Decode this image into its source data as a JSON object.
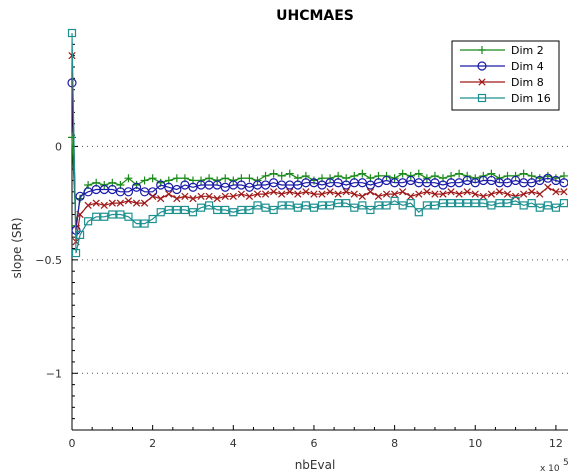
{
  "chart_data": {
    "type": "line",
    "title": "UHCMAES",
    "xlabel": "nbEval",
    "ylabel": "slope (SR)",
    "x_exponent_label": "x 10",
    "x_exponent_power": "5",
    "xlim": [
      0,
      12.3
    ],
    "ylim": [
      -1.25,
      0.5
    ],
    "x_ticks": [
      0,
      2,
      4,
      6,
      8,
      10,
      12
    ],
    "x_tick_labels": [
      "0",
      "2",
      "4",
      "6",
      "8",
      "10",
      "12"
    ],
    "y_ticks": [
      0,
      -0.5,
      -1
    ],
    "y_tick_labels": [
      "0",
      "−0.5",
      "−1"
    ],
    "grid": "dotted horizontal",
    "legend_position": "top-right",
    "series": [
      {
        "name": "Dim 2",
        "color": "#1a8a1a",
        "marker": "plus",
        "x": [
          0,
          0.1,
          0.2,
          0.4,
          0.6,
          0.8,
          1.0,
          1.2,
          1.4,
          1.6,
          1.8,
          2.0,
          2.2,
          2.4,
          2.6,
          2.8,
          3.0,
          3.2,
          3.4,
          3.6,
          3.8,
          4.0,
          4.2,
          4.4,
          4.6,
          4.8,
          5.0,
          5.2,
          5.4,
          5.6,
          5.8,
          6.0,
          6.2,
          6.4,
          6.6,
          6.8,
          7.0,
          7.2,
          7.4,
          7.6,
          7.8,
          8.0,
          8.2,
          8.4,
          8.6,
          8.8,
          9.0,
          9.2,
          9.4,
          9.6,
          9.8,
          10.0,
          10.2,
          10.4,
          10.6,
          10.8,
          11.0,
          11.2,
          11.4,
          11.6,
          11.8,
          12.0,
          12.2
        ],
        "y": [
          0.04,
          -0.35,
          -0.23,
          -0.17,
          -0.16,
          -0.17,
          -0.16,
          -0.17,
          -0.14,
          -0.17,
          -0.15,
          -0.14,
          -0.16,
          -0.15,
          -0.14,
          -0.14,
          -0.15,
          -0.15,
          -0.14,
          -0.15,
          -0.14,
          -0.15,
          -0.14,
          -0.14,
          -0.15,
          -0.13,
          -0.12,
          -0.13,
          -0.12,
          -0.14,
          -0.13,
          -0.15,
          -0.14,
          -0.14,
          -0.13,
          -0.14,
          -0.13,
          -0.12,
          -0.14,
          -0.13,
          -0.13,
          -0.14,
          -0.12,
          -0.13,
          -0.12,
          -0.14,
          -0.13,
          -0.14,
          -0.13,
          -0.12,
          -0.13,
          -0.14,
          -0.13,
          -0.12,
          -0.14,
          -0.13,
          -0.13,
          -0.12,
          -0.13,
          -0.14,
          -0.13,
          -0.14,
          -0.13
        ]
      },
      {
        "name": "Dim 4",
        "color": "#1a1aa8",
        "marker": "circle",
        "x": [
          0,
          0.1,
          0.2,
          0.4,
          0.6,
          0.8,
          1.0,
          1.2,
          1.4,
          1.6,
          1.8,
          2.0,
          2.2,
          2.4,
          2.6,
          2.8,
          3.0,
          3.2,
          3.4,
          3.6,
          3.8,
          4.0,
          4.2,
          4.4,
          4.6,
          4.8,
          5.0,
          5.2,
          5.4,
          5.6,
          5.8,
          6.0,
          6.2,
          6.4,
          6.6,
          6.8,
          7.0,
          7.2,
          7.4,
          7.6,
          7.8,
          8.0,
          8.2,
          8.4,
          8.6,
          8.8,
          9.0,
          9.2,
          9.4,
          9.6,
          9.8,
          10.0,
          10.2,
          10.4,
          10.6,
          10.8,
          11.0,
          11.2,
          11.4,
          11.6,
          11.8,
          12.0,
          12.2
        ],
        "y": [
          0.28,
          -0.37,
          -0.22,
          -0.2,
          -0.19,
          -0.19,
          -0.19,
          -0.2,
          -0.2,
          -0.18,
          -0.2,
          -0.2,
          -0.17,
          -0.18,
          -0.19,
          -0.17,
          -0.18,
          -0.17,
          -0.17,
          -0.17,
          -0.18,
          -0.17,
          -0.17,
          -0.18,
          -0.17,
          -0.17,
          -0.16,
          -0.17,
          -0.17,
          -0.17,
          -0.16,
          -0.16,
          -0.17,
          -0.16,
          -0.16,
          -0.17,
          -0.16,
          -0.16,
          -0.17,
          -0.16,
          -0.15,
          -0.16,
          -0.16,
          -0.15,
          -0.16,
          -0.16,
          -0.16,
          -0.17,
          -0.16,
          -0.16,
          -0.15,
          -0.16,
          -0.15,
          -0.15,
          -0.16,
          -0.16,
          -0.15,
          -0.16,
          -0.16,
          -0.15,
          -0.14,
          -0.15,
          -0.16
        ]
      },
      {
        "name": "Dim 8",
        "color": "#a01818",
        "marker": "x",
        "x": [
          0,
          0.1,
          0.2,
          0.4,
          0.6,
          0.8,
          1.0,
          1.2,
          1.4,
          1.6,
          1.8,
          2.0,
          2.2,
          2.4,
          2.6,
          2.8,
          3.0,
          3.2,
          3.4,
          3.6,
          3.8,
          4.0,
          4.2,
          4.4,
          4.6,
          4.8,
          5.0,
          5.2,
          5.4,
          5.6,
          5.8,
          6.0,
          6.2,
          6.4,
          6.6,
          6.8,
          7.0,
          7.2,
          7.4,
          7.6,
          7.8,
          8.0,
          8.2,
          8.4,
          8.6,
          8.8,
          9.0,
          9.2,
          9.4,
          9.6,
          9.8,
          10.0,
          10.2,
          10.4,
          10.6,
          10.8,
          11.0,
          11.2,
          11.4,
          11.6,
          11.8,
          12.0,
          12.2
        ],
        "y": [
          0.4,
          -0.42,
          -0.3,
          -0.26,
          -0.25,
          -0.26,
          -0.25,
          -0.25,
          -0.24,
          -0.25,
          -0.25,
          -0.22,
          -0.23,
          -0.21,
          -0.23,
          -0.22,
          -0.23,
          -0.22,
          -0.22,
          -0.23,
          -0.22,
          -0.22,
          -0.21,
          -0.22,
          -0.21,
          -0.21,
          -0.2,
          -0.21,
          -0.2,
          -0.21,
          -0.2,
          -0.21,
          -0.21,
          -0.2,
          -0.21,
          -0.2,
          -0.21,
          -0.22,
          -0.2,
          -0.22,
          -0.21,
          -0.21,
          -0.2,
          -0.22,
          -0.21,
          -0.2,
          -0.21,
          -0.21,
          -0.2,
          -0.21,
          -0.2,
          -0.21,
          -0.22,
          -0.21,
          -0.2,
          -0.21,
          -0.22,
          -0.21,
          -0.2,
          -0.21,
          -0.18,
          -0.2,
          -0.2
        ]
      },
      {
        "name": "Dim 16",
        "color": "#1e9090",
        "marker": "square",
        "x": [
          0,
          0.1,
          0.2,
          0.4,
          0.6,
          0.8,
          1.0,
          1.2,
          1.4,
          1.6,
          1.8,
          2.0,
          2.2,
          2.4,
          2.6,
          2.8,
          3.0,
          3.2,
          3.4,
          3.6,
          3.8,
          4.0,
          4.2,
          4.4,
          4.6,
          4.8,
          5.0,
          5.2,
          5.4,
          5.6,
          5.8,
          6.0,
          6.2,
          6.4,
          6.6,
          6.8,
          7.0,
          7.2,
          7.4,
          7.6,
          7.8,
          8.0,
          8.2,
          8.4,
          8.6,
          8.8,
          9.0,
          9.2,
          9.4,
          9.6,
          9.8,
          10.0,
          10.2,
          10.4,
          10.6,
          10.8,
          11.0,
          11.2,
          11.4,
          11.6,
          11.8,
          12.0,
          12.2
        ],
        "y": [
          0.5,
          -0.47,
          -0.39,
          -0.33,
          -0.31,
          -0.31,
          -0.3,
          -0.3,
          -0.31,
          -0.34,
          -0.34,
          -0.32,
          -0.29,
          -0.28,
          -0.28,
          -0.28,
          -0.29,
          -0.27,
          -0.26,
          -0.28,
          -0.28,
          -0.29,
          -0.28,
          -0.28,
          -0.26,
          -0.27,
          -0.28,
          -0.26,
          -0.26,
          -0.27,
          -0.26,
          -0.27,
          -0.26,
          -0.26,
          -0.25,
          -0.25,
          -0.27,
          -0.26,
          -0.28,
          -0.26,
          -0.26,
          -0.24,
          -0.26,
          -0.25,
          -0.29,
          -0.26,
          -0.26,
          -0.25,
          -0.25,
          -0.25,
          -0.25,
          -0.25,
          -0.25,
          -0.26,
          -0.25,
          -0.25,
          -0.24,
          -0.26,
          -0.25,
          -0.27,
          -0.26,
          -0.27,
          -0.25
        ]
      }
    ]
  }
}
